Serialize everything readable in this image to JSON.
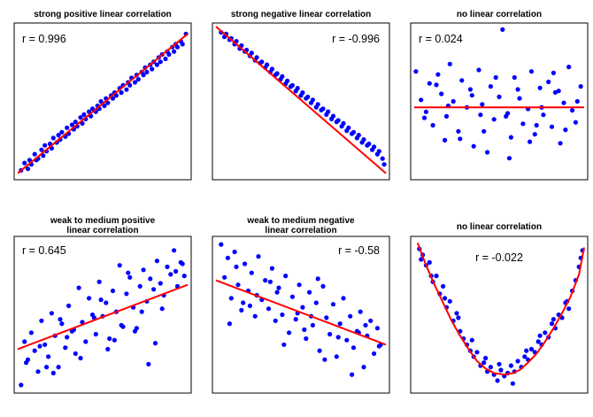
{
  "colors": {
    "points": "#0000ff",
    "fit": "#ff0000",
    "frame": "#000000"
  },
  "chart_data": [
    {
      "type": "scatter",
      "title": [
        "strong positive linear correlation"
      ],
      "annotation": "r = 0.996",
      "annotation_position": "top-left",
      "trend": "linear",
      "x": [
        0.2,
        0.4,
        0.6,
        0.7,
        0.8,
        1.0,
        1.1,
        1.2,
        1.4,
        1.5,
        1.6,
        1.7,
        1.9,
        2.0,
        2.1,
        2.3,
        2.4,
        2.5,
        2.6,
        2.8,
        2.9,
        3.0,
        3.2,
        3.3,
        3.4,
        3.5,
        3.7,
        3.8,
        3.9,
        4.0,
        4.2,
        4.3,
        4.4,
        4.6,
        4.7,
        4.8,
        4.9,
        5.1,
        5.2,
        5.3,
        5.5,
        5.6,
        5.7,
        5.8,
        6.0,
        6.1,
        6.2,
        6.4,
        6.5,
        6.6,
        6.7,
        6.9,
        7.0,
        7.1,
        7.3,
        7.4,
        7.5,
        7.6,
        7.8,
        7.9,
        8.0,
        8.2,
        8.3,
        8.4,
        8.5,
        8.7,
        8.8,
        8.9,
        9.1,
        9.2,
        9.3,
        9.4,
        9.6,
        9.7,
        9.9
      ],
      "y": [
        0.2,
        0.7,
        0.3,
        0.9,
        0.6,
        1.3,
        0.9,
        1.0,
        1.6,
        1.2,
        1.9,
        1.5,
        2.0,
        1.7,
        2.4,
        2.1,
        2.6,
        2.3,
        2.8,
        2.5,
        3.1,
        2.7,
        3.3,
        3.0,
        3.5,
        3.2,
        3.8,
        3.4,
        4.0,
        3.7,
        4.2,
        3.9,
        4.4,
        4.2,
        4.6,
        4.4,
        4.9,
        4.6,
        5.1,
        4.8,
        5.3,
        5.1,
        5.5,
        5.3,
        5.8,
        5.5,
        6.0,
        5.7,
        6.2,
        6.0,
        6.5,
        6.2,
        6.7,
        6.4,
        6.9,
        6.7,
        7.2,
        6.9,
        7.4,
        7.1,
        7.6,
        7.4,
        7.9,
        7.6,
        8.1,
        7.8,
        8.3,
        8.1,
        8.6,
        8.3,
        8.8,
        8.6,
        9.0,
        8.8,
        9.5
      ],
      "fit_line": [
        [
          0,
          0.0
        ],
        [
          10,
          9.5
        ]
      ],
      "xlim": [
        0,
        10
      ],
      "ylim": [
        -0.2,
        10
      ]
    },
    {
      "type": "scatter",
      "title": [
        "strong negative linear correlation"
      ],
      "annotation": "r = -0.996",
      "annotation_position": "top-right",
      "trend": "linear",
      "x": [
        0.3,
        0.5,
        0.6,
        0.8,
        0.9,
        1.1,
        1.2,
        1.4,
        1.5,
        1.7,
        1.8,
        2.0,
        2.1,
        2.3,
        2.4,
        2.6,
        2.7,
        2.9,
        3.0,
        3.2,
        3.3,
        3.5,
        3.6,
        3.8,
        3.9,
        4.1,
        4.2,
        4.4,
        4.5,
        4.7,
        4.8,
        5.0,
        5.1,
        5.3,
        5.4,
        5.6,
        5.7,
        5.9,
        6.0,
        6.2,
        6.3,
        6.5,
        6.6,
        6.8,
        6.9,
        7.1,
        7.2,
        7.4,
        7.5,
        7.7,
        7.8,
        8.0,
        8.1,
        8.3,
        8.4,
        8.6,
        8.7,
        8.9,
        9.0,
        9.2,
        9.3,
        9.5,
        9.6,
        9.8,
        9.9
      ],
      "y": [
        9.6,
        9.3,
        9.5,
        9.1,
        9.2,
        8.8,
        9.0,
        8.5,
        8.7,
        8.3,
        8.4,
        8.0,
        8.2,
        7.7,
        7.9,
        7.5,
        7.6,
        7.2,
        7.4,
        6.9,
        7.1,
        6.7,
        6.8,
        6.4,
        6.6,
        6.1,
        6.3,
        5.9,
        6.0,
        5.6,
        5.8,
        5.3,
        5.5,
        5.1,
        5.2,
        4.8,
        5.0,
        4.5,
        4.7,
        4.3,
        4.4,
        4.0,
        4.2,
        3.7,
        3.9,
        3.5,
        3.6,
        3.2,
        3.4,
        2.9,
        3.1,
        2.7,
        2.8,
        2.4,
        2.6,
        2.1,
        2.3,
        1.9,
        2.0,
        1.6,
        1.8,
        1.3,
        1.5,
        1.0,
        0.6
      ],
      "fit_line": [
        [
          0,
          10.0
        ],
        [
          10,
          0.0
        ]
      ],
      "xlim": [
        0,
        10
      ],
      "ylim": [
        -0.2,
        10
      ]
    },
    {
      "type": "scatter",
      "title": [
        "no linear correlation"
      ],
      "annotation": "r = 0.024",
      "annotation_position": "top-left",
      "trend": "linear",
      "x": [
        0.1,
        0.4,
        0.7,
        0.9,
        1.1,
        1.4,
        1.6,
        1.9,
        2.1,
        2.3,
        2.6,
        2.8,
        3.1,
        3.3,
        3.5,
        3.8,
        4.0,
        4.3,
        4.5,
        4.7,
        5.0,
        5.2,
        5.5,
        5.7,
        5.9,
        6.2,
        6.4,
        6.7,
        6.9,
        7.1,
        7.4,
        7.6,
        7.9,
        8.1,
        8.3,
        8.6,
        8.8,
        9.1,
        9.3,
        9.5,
        9.8,
        0.6,
        1.3,
        2.0,
        2.7,
        3.4,
        4.1,
        4.8,
        5.4,
        6.1,
        6.8,
        7.5,
        8.2,
        8.9,
        9.6,
        3.9,
        5.6,
        7.2,
        1.8,
        8.5
      ],
      "y": [
        7.0,
        5.1,
        4.3,
        6.2,
        3.4,
        6.8,
        5.5,
        4.0,
        7.5,
        5.0,
        3.0,
        6.4,
        4.6,
        5.8,
        2.0,
        7.1,
        4.8,
        1.6,
        6.0,
        3.8,
        5.3,
        9.8,
        4.2,
        2.6,
        6.6,
        5.2,
        3.5,
        4.5,
        7.0,
        2.8,
        5.9,
        4.1,
        6.3,
        3.3,
        5.6,
        2.2,
        4.9,
        7.3,
        4.4,
        3.6,
        6.0,
        3.9,
        6.1,
        4.7,
        2.5,
        5.4,
        3.0,
        6.6,
        4.0,
        5.8,
        2.3,
        4.6,
        6.9,
        3.1,
        5.0,
        4.1,
        1.2,
        3.4,
        2.4,
        5.7
      ],
      "fit_line": [
        [
          0,
          4.6
        ],
        [
          10,
          4.6
        ]
      ],
      "xlim": [
        0,
        10
      ],
      "ylim": [
        0,
        10
      ]
    },
    {
      "type": "scatter",
      "title": [
        "weak to medium positive",
        "linear correlation"
      ],
      "annotation": "r = 0.645",
      "annotation_position": "top-left",
      "trend": "linear",
      "x": [
        0.2,
        0.4,
        0.6,
        0.8,
        1.0,
        1.2,
        1.4,
        1.6,
        1.8,
        2.0,
        2.2,
        2.4,
        2.6,
        2.8,
        3.0,
        3.2,
        3.4,
        3.6,
        3.8,
        4.0,
        4.2,
        4.4,
        4.6,
        4.8,
        5.0,
        5.2,
        5.4,
        5.6,
        5.8,
        6.0,
        6.2,
        6.4,
        6.6,
        6.8,
        7.0,
        7.2,
        7.4,
        7.6,
        7.8,
        8.0,
        8.2,
        8.4,
        8.6,
        8.8,
        9.0,
        9.2,
        9.4,
        9.6,
        9.8,
        0.5,
        1.3,
        2.1,
        2.9,
        3.7,
        4.5,
        5.3,
        6.1,
        6.9,
        7.7,
        8.5,
        9.3,
        1.7,
        3.3,
        4.9,
        6.5,
        8.1,
        9.7,
        2.5,
        5.7,
        7.3
      ],
      "y": [
        0.3,
        3.2,
        2.0,
        3.8,
        2.6,
        1.2,
        4.6,
        3.0,
        2.2,
        5.1,
        3.6,
        1.5,
        4.4,
        2.8,
        5.6,
        3.9,
        2.4,
        6.8,
        4.5,
        3.2,
        6.1,
        5.0,
        3.7,
        7.2,
        4.9,
        5.8,
        3.4,
        6.6,
        5.2,
        8.3,
        4.2,
        6.4,
        7.5,
        5.5,
        4.1,
        6.9,
        8.0,
        5.9,
        7.4,
        6.7,
        8.6,
        7.1,
        6.3,
        8.2,
        7.7,
        9.3,
        6.9,
        8.5,
        7.6,
        1.8,
        2.9,
        1.1,
        3.5,
        2.1,
        4.8,
        2.7,
        4.3,
        3.9,
        1.7,
        5.4,
        7.9,
        1.5,
        4.0,
        6.0,
        7.8,
        3.1,
        8.4,
        4.7,
        3.3,
        5.2
      ],
      "fit_line": [
        [
          0,
          2.7
        ],
        [
          10,
          7.0
        ]
      ],
      "xlim": [
        0,
        10
      ],
      "ylim": [
        0,
        10
      ]
    },
    {
      "type": "scatter",
      "title": [
        "weak to medium negative",
        "linear correlation"
      ],
      "annotation": "r = -0.58",
      "annotation_position": "top-right",
      "trend": "linear",
      "x": [
        0.3,
        0.5,
        0.7,
        0.9,
        1.1,
        1.3,
        1.5,
        1.7,
        1.9,
        2.1,
        2.3,
        2.5,
        2.7,
        2.9,
        3.1,
        3.3,
        3.5,
        3.7,
        3.9,
        4.1,
        4.3,
        4.5,
        4.7,
        4.9,
        5.1,
        5.3,
        5.5,
        5.7,
        5.9,
        6.1,
        6.3,
        6.5,
        6.7,
        6.9,
        7.1,
        7.3,
        7.5,
        7.7,
        7.9,
        8.1,
        8.3,
        8.5,
        8.7,
        8.9,
        9.1,
        9.3,
        9.5,
        9.7,
        0.8,
        1.6,
        2.4,
        3.2,
        4.0,
        4.8,
        5.6,
        6.4,
        7.2,
        8.0,
        8.8,
        9.6,
        1.2,
        3.6,
        6.0,
        8.4,
        2.0,
        5.2
      ],
      "y": [
        9.7,
        7.5,
        8.8,
        6.1,
        9.2,
        7.0,
        5.3,
        8.4,
        6.6,
        7.8,
        4.9,
        8.9,
        6.0,
        7.3,
        5.4,
        8.1,
        4.6,
        6.8,
        5.0,
        7.6,
        3.8,
        6.2,
        4.7,
        7.0,
        5.5,
        3.4,
        6.5,
        4.3,
        5.8,
        2.6,
        6.9,
        4.8,
        3.7,
        5.7,
        2.2,
        4.4,
        6.1,
        3.3,
        4.9,
        2.8,
        3.9,
        5.2,
        1.5,
        3.6,
        4.6,
        2.4,
        4.1,
        3.0,
        4.4,
        5.8,
        6.3,
        7.2,
        3.0,
        5.1,
        4.9,
        2.0,
        3.5,
        1.0,
        4.3,
        2.9,
        8.2,
        6.5,
        7.4,
        3.8,
        5.6,
        4.0
      ],
      "fit_line": [
        [
          0,
          7.3
        ],
        [
          10,
          3.0
        ]
      ],
      "xlim": [
        0,
        10
      ],
      "ylim": [
        0,
        10
      ]
    },
    {
      "type": "scatter",
      "title": [
        "no linear correlation"
      ],
      "annotation": "r = -0.022",
      "annotation_position": "top-center",
      "trend": "quadratic",
      "x": [
        0.3,
        0.5,
        0.7,
        0.9,
        1.1,
        1.3,
        1.5,
        1.7,
        1.9,
        2.1,
        2.3,
        2.5,
        2.7,
        2.9,
        3.1,
        3.3,
        3.5,
        3.7,
        3.9,
        4.1,
        4.3,
        4.5,
        4.7,
        4.9,
        5.1,
        5.3,
        5.5,
        5.7,
        5.9,
        6.1,
        6.3,
        6.5,
        6.7,
        6.9,
        7.1,
        7.3,
        7.5,
        7.7,
        7.9,
        8.1,
        8.3,
        8.5,
        8.7,
        8.9,
        9.1,
        9.3,
        9.5,
        9.7,
        9.9,
        0.4,
        1.0,
        1.8,
        2.6,
        3.4,
        4.2,
        5.0,
        5.8,
        6.6,
        7.4,
        8.2,
        9.0,
        9.8
      ],
      "y": [
        9.4,
        9.0,
        8.3,
        8.5,
        7.2,
        7.6,
        6.4,
        6.9,
        5.5,
        5.9,
        4.6,
        5.1,
        3.9,
        3.4,
        3.0,
        2.6,
        2.2,
        2.5,
        1.6,
        1.8,
        1.2,
        1.5,
        1.0,
        0.6,
        1.3,
        0.9,
        1.1,
        1.6,
        1.2,
        1.9,
        1.5,
        2.2,
        2.0,
        2.7,
        2.5,
        3.2,
        3.0,
        3.8,
        3.5,
        4.4,
        4.1,
        5.0,
        4.8,
        5.8,
        5.4,
        6.6,
        7.3,
        8.2,
        9.3,
        8.7,
        7.6,
        6.1,
        4.8,
        3.3,
        2.1,
        1.7,
        0.4,
        2.6,
        3.6,
        4.7,
        5.9,
        8.8
      ],
      "fit_line": [
        [
          0.2,
          9.8
        ],
        [
          0.7,
          8.3
        ],
        [
          1.2,
          7.0
        ],
        [
          1.7,
          5.8
        ],
        [
          2.2,
          4.6
        ],
        [
          2.7,
          3.6
        ],
        [
          3.2,
          2.7
        ],
        [
          3.7,
          1.9
        ],
        [
          4.2,
          1.4
        ],
        [
          4.7,
          1.1
        ],
        [
          5.3,
          1.0
        ],
        [
          5.8,
          1.1
        ],
        [
          6.2,
          1.3
        ],
        [
          6.7,
          1.8
        ],
        [
          7.2,
          2.4
        ],
        [
          7.7,
          3.2
        ],
        [
          8.2,
          4.1
        ],
        [
          8.7,
          5.1
        ],
        [
          9.2,
          6.2
        ],
        [
          9.7,
          7.7
        ],
        [
          10.0,
          9.5
        ]
      ],
      "xlim": [
        0,
        10
      ],
      "ylim": [
        0,
        10
      ]
    }
  ]
}
